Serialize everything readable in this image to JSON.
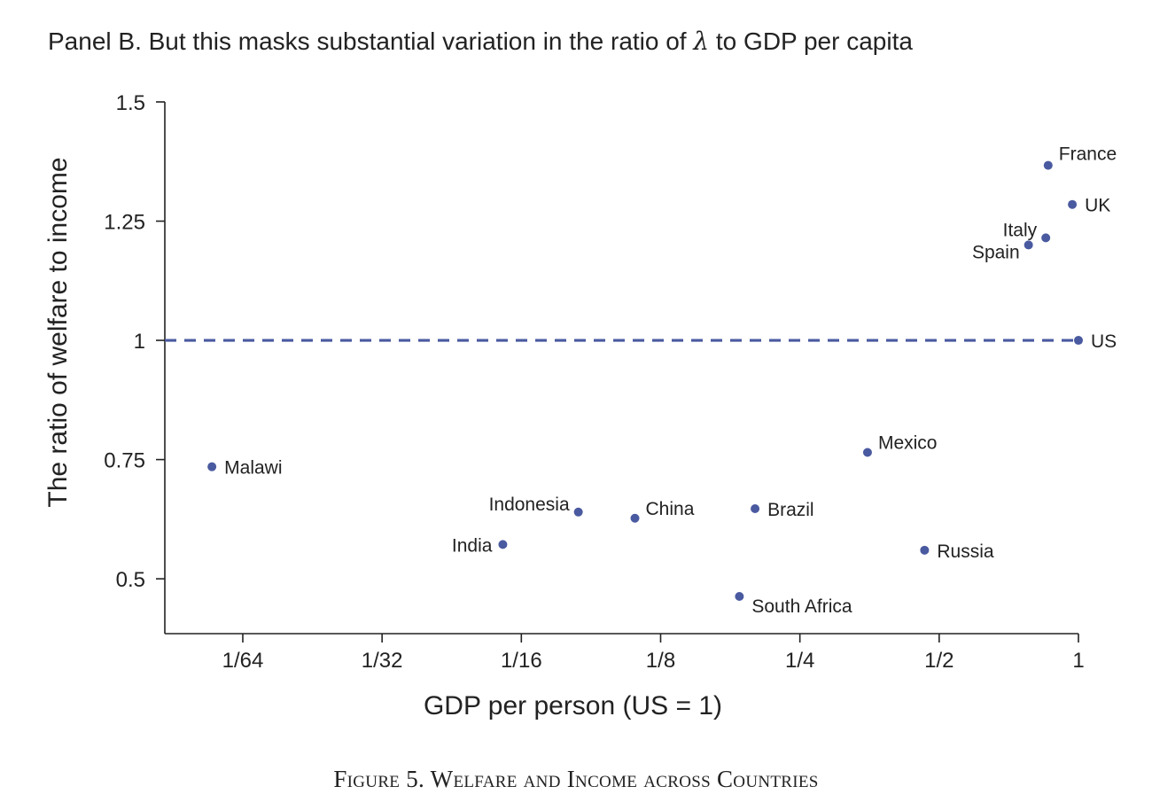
{
  "panel_title_prefix": "Panel B. But this masks substantial variation in the ratio of ",
  "panel_title_symbol": "λ",
  "panel_title_suffix": " to GDP per capita",
  "caption": "Figure 5. Welfare and Income across Countries",
  "chart_data": {
    "type": "scatter",
    "xlabel": "GDP per person (US = 1)",
    "ylabel": "The ratio of welfare to income",
    "x_scale": "log2",
    "x_ticks": [
      {
        "value": 0.015625,
        "label": "1/64"
      },
      {
        "value": 0.03125,
        "label": "1/32"
      },
      {
        "value": 0.0625,
        "label": "1/16"
      },
      {
        "value": 0.125,
        "label": "1/8"
      },
      {
        "value": 0.25,
        "label": "1/4"
      },
      {
        "value": 0.5,
        "label": "1/2"
      },
      {
        "value": 1,
        "label": "1"
      }
    ],
    "y_ticks": [
      {
        "value": 0.5,
        "label": "0.5"
      },
      {
        "value": 0.75,
        "label": "0.75"
      },
      {
        "value": 1,
        "label": "1"
      },
      {
        "value": 1.25,
        "label": "1.25"
      },
      {
        "value": 1.5,
        "label": "1.5"
      }
    ],
    "xlim": [
      0.0106,
      1
    ],
    "ylim": [
      0.385,
      1.5
    ],
    "reference_line": {
      "y": 1,
      "style": "dashed"
    },
    "points": [
      {
        "label": "Malawi",
        "x": 0.0134,
        "y": 0.735,
        "label_pos": "right"
      },
      {
        "label": "India",
        "x": 0.057,
        "y": 0.572,
        "label_pos": "left"
      },
      {
        "label": "Indonesia",
        "x": 0.083,
        "y": 0.64,
        "label_pos": "left-up"
      },
      {
        "label": "China",
        "x": 0.11,
        "y": 0.627,
        "label_pos": "right-up"
      },
      {
        "label": "Brazil",
        "x": 0.2,
        "y": 0.647,
        "label_pos": "right"
      },
      {
        "label": "South Africa",
        "x": 0.185,
        "y": 0.463,
        "label_pos": "right-down"
      },
      {
        "label": "Mexico",
        "x": 0.35,
        "y": 0.765,
        "label_pos": "right-up"
      },
      {
        "label": "Russia",
        "x": 0.465,
        "y": 0.56,
        "label_pos": "right"
      },
      {
        "label": "Spain",
        "x": 0.78,
        "y": 1.2,
        "label_pos": "left-down"
      },
      {
        "label": "Italy",
        "x": 0.85,
        "y": 1.215,
        "label_pos": "left-up"
      },
      {
        "label": "France",
        "x": 0.86,
        "y": 1.367,
        "label_pos": "right-up"
      },
      {
        "label": "UK",
        "x": 0.97,
        "y": 1.285,
        "label_pos": "right"
      },
      {
        "label": "US",
        "x": 1,
        "y": 1,
        "label_pos": "right"
      }
    ],
    "colors": {
      "points": "#4a5aa0",
      "dashed_line": "#4a5aa0",
      "axis": "#222222"
    }
  }
}
